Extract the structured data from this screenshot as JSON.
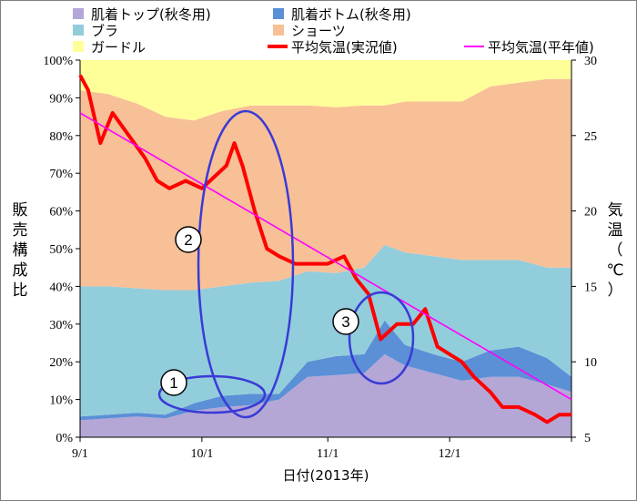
{
  "chart_data": {
    "type": "area",
    "xlabel": "日付(2013年)",
    "ylabel_left": [
      "販",
      "売",
      "構",
      "成",
      "比"
    ],
    "ylabel_right": [
      "気",
      "温",
      "（",
      "℃",
      "）"
    ],
    "ylim_left": [
      0,
      100
    ],
    "ylim_right": [
      5,
      30
    ],
    "yticks_left": [
      "0%",
      "10%",
      "20%",
      "30%",
      "40%",
      "50%",
      "60%",
      "70%",
      "80%",
      "90%",
      "100%"
    ],
    "yticks_right": [
      "5",
      "10",
      "15",
      "20",
      "25",
      "30"
    ],
    "x_ticks": [
      "9/1",
      "10/1",
      "11/1",
      "12/1"
    ],
    "x_range": [
      "2013-09-01",
      "2013-12-31"
    ],
    "stacked_series": [
      {
        "name": "肌着トップ(秋冬用)",
        "color": "#b4a7d6",
        "x": [
          "2013-09-01",
          "2013-09-08",
          "2013-09-15",
          "2013-09-22",
          "2013-09-29",
          "2013-10-06",
          "2013-10-13",
          "2013-10-20",
          "2013-10-27",
          "2013-11-03",
          "2013-11-10",
          "2013-11-15",
          "2013-11-20",
          "2013-11-27",
          "2013-12-04",
          "2013-12-11",
          "2013-12-18",
          "2013-12-25",
          "2013-12-31"
        ],
        "values": [
          4.5,
          5,
          5.5,
          5,
          7,
          8,
          8.5,
          10,
          16,
          16.5,
          17,
          22,
          19,
          17,
          15,
          16,
          16,
          14,
          12
        ]
      },
      {
        "name": "肌着ボトム(秋冬用)",
        "color": "#5b8fd6",
        "x": [
          "2013-09-01",
          "2013-09-08",
          "2013-09-15",
          "2013-09-22",
          "2013-09-29",
          "2013-10-06",
          "2013-10-13",
          "2013-10-20",
          "2013-10-27",
          "2013-11-03",
          "2013-11-10",
          "2013-11-15",
          "2013-11-20",
          "2013-11-27",
          "2013-12-04",
          "2013-12-11",
          "2013-12-18",
          "2013-12-25",
          "2013-12-31"
        ],
        "values": [
          1,
          1,
          1,
          1,
          2,
          3,
          3,
          1.5,
          4,
          5,
          5,
          9,
          5.5,
          5,
          5,
          7,
          8,
          7,
          4
        ]
      },
      {
        "name": "ブラ",
        "color": "#92cddc",
        "x": [
          "2013-09-01",
          "2013-09-08",
          "2013-09-15",
          "2013-09-22",
          "2013-09-29",
          "2013-10-06",
          "2013-10-13",
          "2013-10-20",
          "2013-10-27",
          "2013-11-03",
          "2013-11-10",
          "2013-11-15",
          "2013-11-20",
          "2013-11-27",
          "2013-12-04",
          "2013-12-11",
          "2013-12-18",
          "2013-12-25",
          "2013-12-31"
        ],
        "values": [
          34.5,
          34,
          33,
          33,
          30,
          29,
          29.5,
          30,
          24,
          22,
          23,
          20,
          24.5,
          26,
          27,
          24,
          23,
          24,
          29
        ]
      },
      {
        "name": "ショーツ",
        "color": "#f7c097",
        "x": [
          "2013-09-01",
          "2013-09-08",
          "2013-09-15",
          "2013-09-22",
          "2013-09-29",
          "2013-10-06",
          "2013-10-13",
          "2013-10-20",
          "2013-10-27",
          "2013-11-03",
          "2013-11-10",
          "2013-11-15",
          "2013-11-20",
          "2013-11-27",
          "2013-12-04",
          "2013-12-11",
          "2013-12-18",
          "2013-12-25",
          "2013-12-31"
        ],
        "values": [
          52,
          51,
          49,
          46,
          45,
          46.5,
          47,
          46.5,
          44,
          44,
          43,
          37,
          40,
          41,
          42,
          46,
          47,
          50,
          50
        ]
      },
      {
        "name": "ガードル",
        "color": "#ffff99",
        "x": [
          "2013-09-01",
          "2013-09-08",
          "2013-09-15",
          "2013-09-22",
          "2013-09-29",
          "2013-10-06",
          "2013-10-13",
          "2013-10-20",
          "2013-10-27",
          "2013-11-03",
          "2013-11-10",
          "2013-11-15",
          "2013-11-20",
          "2013-11-27",
          "2013-12-04",
          "2013-12-11",
          "2013-12-18",
          "2013-12-25",
          "2013-12-31"
        ],
        "values": [
          8,
          9,
          11.5,
          15,
          16,
          13.5,
          12,
          12,
          12,
          12.5,
          12,
          12,
          11,
          11,
          11,
          7,
          6,
          5,
          5
        ]
      }
    ],
    "line_series": [
      {
        "name": "平均気温(実況値)",
        "color": "#ff0000",
        "x": [
          "2013-09-01",
          "2013-09-03",
          "2013-09-06",
          "2013-09-09",
          "2013-09-13",
          "2013-09-17",
          "2013-09-20",
          "2013-09-23",
          "2013-09-27",
          "2013-10-01",
          "2013-10-03",
          "2013-10-07",
          "2013-10-09",
          "2013-10-11",
          "2013-10-14",
          "2013-10-17",
          "2013-10-20",
          "2013-10-24",
          "2013-10-28",
          "2013-11-01",
          "2013-11-05",
          "2013-11-08",
          "2013-11-11",
          "2013-11-14",
          "2013-11-18",
          "2013-11-22",
          "2013-11-25",
          "2013-11-28",
          "2013-12-01",
          "2013-12-04",
          "2013-12-07",
          "2013-12-11",
          "2013-12-14",
          "2013-12-18",
          "2013-12-22",
          "2013-12-25",
          "2013-12-28",
          "2013-12-31"
        ],
        "values": [
          29,
          28,
          24.5,
          26.5,
          25,
          23.5,
          22,
          21.5,
          22,
          21.5,
          22,
          23,
          24.5,
          23,
          20,
          17.5,
          17,
          16.5,
          16.5,
          16.5,
          17,
          15.5,
          14.5,
          11.5,
          12.5,
          12.5,
          13.5,
          11,
          10.5,
          10,
          9,
          8,
          7,
          7,
          6.5,
          6,
          6.5,
          6.5
        ]
      },
      {
        "name": "平均気温(平年値)",
        "color": "#ff00ff",
        "x": [
          "2013-09-01",
          "2013-12-31"
        ],
        "values": [
          26.5,
          7.5
        ]
      }
    ],
    "legend": [
      "肌着トップ(秋冬用)",
      "肌着ボトム(秋冬用)",
      "ブラ",
      "ショーツ",
      "ガードル",
      "平均気温(実況値)",
      "平均気温(平年値)"
    ],
    "legend_position": "top",
    "grid": false,
    "annotations": [
      {
        "label": "1",
        "shape": "ellipse"
      },
      {
        "label": "2",
        "shape": "ellipse"
      },
      {
        "label": "3",
        "shape": "ellipse"
      }
    ]
  }
}
